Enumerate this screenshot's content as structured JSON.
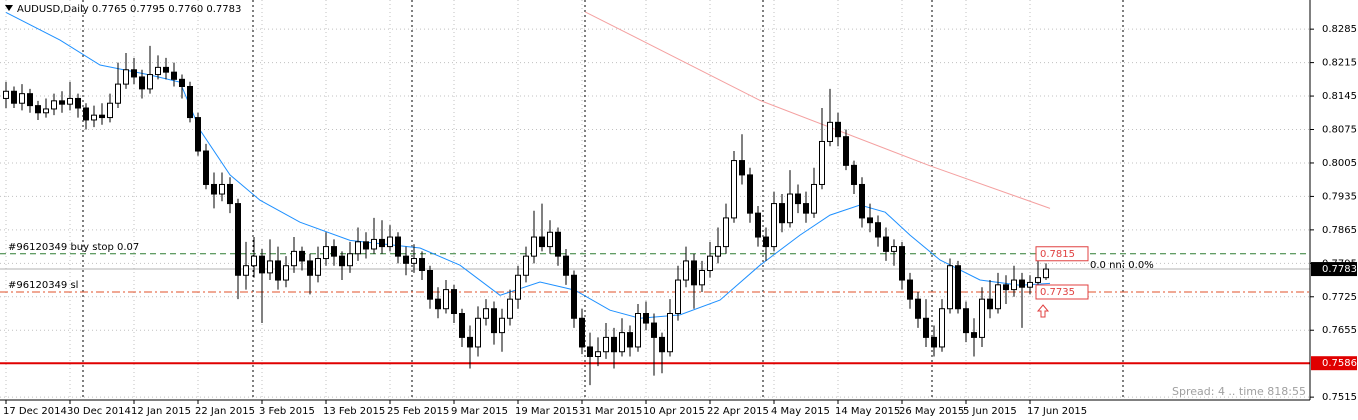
{
  "chart_data": {
    "type": "candlestick",
    "title": "AUDUSD,Daily  0.7765 0.7795 0.7760 0.7783",
    "status": "Spread: 4 .. time 818:55",
    "xlim": [
      -0.75,
      163
    ],
    "ylim": [
      0.7509,
      0.8346
    ],
    "yticks": [
      0.8285,
      0.8215,
      0.8145,
      0.8075,
      0.8005,
      0.7935,
      0.7865,
      0.7795,
      0.7725,
      0.7655,
      0.7515
    ],
    "xticks": [
      {
        "value": 0,
        "label": "17 Dec 2014"
      },
      {
        "value": 8,
        "label": "30 Dec 2014"
      },
      {
        "value": 16,
        "label": "12 Jan 2015"
      },
      {
        "value": 24,
        "label": "22 Jan 2015"
      },
      {
        "value": 32,
        "label": "3 Feb 2015"
      },
      {
        "value": 40,
        "label": "13 Feb 2015"
      },
      {
        "value": 48,
        "label": "25 Feb 2015"
      },
      {
        "value": 56,
        "label": "9 Mar 2015"
      },
      {
        "value": 64,
        "label": "19 Mar 2015"
      },
      {
        "value": 72,
        "label": "31 Mar 2015"
      },
      {
        "value": 80,
        "label": "10 Apr 2015"
      },
      {
        "value": 88,
        "label": "22 Apr 2015"
      },
      {
        "value": 96,
        "label": "4 May 2015"
      },
      {
        "value": 104,
        "label": "14 May 2015"
      },
      {
        "value": 112,
        "label": "26 May 2015"
      },
      {
        "value": 120,
        "label": "5 Jun 2015"
      },
      {
        "value": 128,
        "label": "17 Jun 2015"
      }
    ],
    "grid": true,
    "up_color": "#ffffff",
    "down_color": "#000000",
    "candles": [
      [
        0.814,
        0.8175,
        0.812,
        0.8155
      ],
      [
        0.8155,
        0.8165,
        0.812,
        0.813
      ],
      [
        0.813,
        0.817,
        0.8115,
        0.815
      ],
      [
        0.815,
        0.816,
        0.811,
        0.8125
      ],
      [
        0.8125,
        0.8135,
        0.8095,
        0.811
      ],
      [
        0.811,
        0.814,
        0.81,
        0.8118
      ],
      [
        0.8118,
        0.815,
        0.8105,
        0.8135
      ],
      [
        0.8135,
        0.8155,
        0.811,
        0.8128
      ],
      [
        0.8128,
        0.8175,
        0.8115,
        0.814
      ],
      [
        0.814,
        0.815,
        0.81,
        0.812
      ],
      [
        0.812,
        0.813,
        0.8075,
        0.8095
      ],
      [
        0.8095,
        0.8125,
        0.808,
        0.8105
      ],
      [
        0.8105,
        0.813,
        0.8085,
        0.81
      ],
      [
        0.81,
        0.815,
        0.809,
        0.813
      ],
      [
        0.813,
        0.8215,
        0.812,
        0.817
      ],
      [
        0.817,
        0.8235,
        0.816,
        0.82
      ],
      [
        0.82,
        0.8225,
        0.817,
        0.8185
      ],
      [
        0.8185,
        0.82,
        0.814,
        0.816
      ],
      [
        0.816,
        0.825,
        0.815,
        0.819
      ],
      [
        0.819,
        0.823,
        0.818,
        0.8205
      ],
      [
        0.8205,
        0.8225,
        0.818,
        0.8195
      ],
      [
        0.8195,
        0.8215,
        0.8165,
        0.818
      ],
      [
        0.818,
        0.819,
        0.814,
        0.8165
      ],
      [
        0.8165,
        0.8175,
        0.809,
        0.81
      ],
      [
        0.81,
        0.811,
        0.802,
        0.803
      ],
      [
        0.803,
        0.8045,
        0.795,
        0.796
      ],
      [
        0.796,
        0.7985,
        0.791,
        0.794
      ],
      [
        0.794,
        0.7985,
        0.7925,
        0.796
      ],
      [
        0.796,
        0.7975,
        0.79,
        0.792
      ],
      [
        0.792,
        0.793,
        0.772,
        0.777
      ],
      [
        0.777,
        0.784,
        0.774,
        0.779
      ],
      [
        0.779,
        0.785,
        0.7765,
        0.781
      ],
      [
        0.781,
        0.7825,
        0.767,
        0.7775
      ],
      [
        0.7775,
        0.7845,
        0.776,
        0.78
      ],
      [
        0.78,
        0.783,
        0.774,
        0.776
      ],
      [
        0.776,
        0.781,
        0.7745,
        0.779
      ],
      [
        0.779,
        0.785,
        0.7775,
        0.782
      ],
      [
        0.782,
        0.783,
        0.778,
        0.78
      ],
      [
        0.78,
        0.7815,
        0.773,
        0.777
      ],
      [
        0.777,
        0.783,
        0.7755,
        0.7805
      ],
      [
        0.7805,
        0.786,
        0.779,
        0.783
      ],
      [
        0.783,
        0.7845,
        0.779,
        0.781
      ],
      [
        0.781,
        0.782,
        0.776,
        0.779
      ],
      [
        0.779,
        0.784,
        0.7775,
        0.7815
      ],
      [
        0.7815,
        0.787,
        0.78,
        0.784
      ],
      [
        0.784,
        0.786,
        0.7805,
        0.7825
      ],
      [
        0.7825,
        0.789,
        0.7815,
        0.7845
      ],
      [
        0.7845,
        0.7885,
        0.7815,
        0.783
      ],
      [
        0.783,
        0.7875,
        0.782,
        0.785
      ],
      [
        0.785,
        0.786,
        0.7795,
        0.781
      ],
      [
        0.781,
        0.783,
        0.777,
        0.7795
      ],
      [
        0.7795,
        0.7835,
        0.7775,
        0.7805
      ],
      [
        0.7805,
        0.782,
        0.776,
        0.778
      ],
      [
        0.778,
        0.779,
        0.77,
        0.772
      ],
      [
        0.772,
        0.7745,
        0.768,
        0.77
      ],
      [
        0.77,
        0.776,
        0.769,
        0.774
      ],
      [
        0.774,
        0.775,
        0.767,
        0.769
      ],
      [
        0.769,
        0.77,
        0.762,
        0.764
      ],
      [
        0.764,
        0.7665,
        0.7575,
        0.762
      ],
      [
        0.762,
        0.7705,
        0.76,
        0.768
      ],
      [
        0.768,
        0.772,
        0.7665,
        0.77
      ],
      [
        0.77,
        0.7715,
        0.7625,
        0.765
      ],
      [
        0.765,
        0.77,
        0.761,
        0.768
      ],
      [
        0.768,
        0.774,
        0.7665,
        0.772
      ],
      [
        0.772,
        0.779,
        0.77,
        0.777
      ],
      [
        0.777,
        0.783,
        0.7755,
        0.781
      ],
      [
        0.781,
        0.7905,
        0.7795,
        0.785
      ],
      [
        0.785,
        0.792,
        0.782,
        0.783
      ],
      [
        0.783,
        0.7885,
        0.7815,
        0.786
      ],
      [
        0.786,
        0.787,
        0.779,
        0.781
      ],
      [
        0.781,
        0.7825,
        0.775,
        0.777
      ],
      [
        0.777,
        0.778,
        0.766,
        0.768
      ],
      [
        0.768,
        0.77,
        0.7605,
        0.762
      ],
      [
        0.762,
        0.765,
        0.754,
        0.76
      ],
      [
        0.76,
        0.764,
        0.758,
        0.761
      ],
      [
        0.761,
        0.767,
        0.7595,
        0.764
      ],
      [
        0.764,
        0.766,
        0.7575,
        0.761
      ],
      [
        0.761,
        0.768,
        0.76,
        0.765
      ],
      [
        0.765,
        0.7665,
        0.76,
        0.762
      ],
      [
        0.762,
        0.771,
        0.761,
        0.769
      ],
      [
        0.769,
        0.7715,
        0.7655,
        0.767
      ],
      [
        0.767,
        0.769,
        0.756,
        0.764
      ],
      [
        0.764,
        0.765,
        0.7565,
        0.761
      ],
      [
        0.761,
        0.772,
        0.76,
        0.769
      ],
      [
        0.769,
        0.779,
        0.7675,
        0.776
      ],
      [
        0.776,
        0.783,
        0.7745,
        0.78
      ],
      [
        0.78,
        0.7815,
        0.77,
        0.775
      ],
      [
        0.775,
        0.78,
        0.7735,
        0.778
      ],
      [
        0.778,
        0.784,
        0.7765,
        0.781
      ],
      [
        0.781,
        0.787,
        0.7795,
        0.783
      ],
      [
        0.783,
        0.792,
        0.7815,
        0.789
      ],
      [
        0.789,
        0.803,
        0.788,
        0.801
      ],
      [
        0.801,
        0.8065,
        0.796,
        0.798
      ],
      [
        0.798,
        0.7995,
        0.788,
        0.79
      ],
      [
        0.79,
        0.7915,
        0.783,
        0.785
      ],
      [
        0.785,
        0.787,
        0.78,
        0.783
      ],
      [
        0.783,
        0.7945,
        0.782,
        0.792
      ],
      [
        0.792,
        0.794,
        0.786,
        0.788
      ],
      [
        0.788,
        0.799,
        0.787,
        0.794
      ],
      [
        0.794,
        0.796,
        0.79,
        0.792
      ],
      [
        0.792,
        0.7945,
        0.788,
        0.79
      ],
      [
        0.79,
        0.7995,
        0.789,
        0.796
      ],
      [
        0.796,
        0.812,
        0.795,
        0.805
      ],
      [
        0.805,
        0.816,
        0.804,
        0.809
      ],
      [
        0.809,
        0.811,
        0.804,
        0.806
      ],
      [
        0.806,
        0.8075,
        0.799,
        0.8
      ],
      [
        0.8,
        0.801,
        0.794,
        0.796
      ],
      [
        0.796,
        0.7975,
        0.787,
        0.789
      ],
      [
        0.789,
        0.792,
        0.786,
        0.788
      ],
      [
        0.788,
        0.7895,
        0.783,
        0.785
      ],
      [
        0.785,
        0.787,
        0.78,
        0.782
      ],
      [
        0.782,
        0.7845,
        0.779,
        0.783
      ],
      [
        0.783,
        0.784,
        0.774,
        0.776
      ],
      [
        0.776,
        0.7775,
        0.77,
        0.772
      ],
      [
        0.772,
        0.7735,
        0.766,
        0.768
      ],
      [
        0.768,
        0.772,
        0.762,
        0.764
      ],
      [
        0.764,
        0.7665,
        0.76,
        0.762
      ],
      [
        0.762,
        0.772,
        0.761,
        0.77
      ],
      [
        0.77,
        0.7805,
        0.769,
        0.779
      ],
      [
        0.779,
        0.78,
        0.769,
        0.77
      ],
      [
        0.77,
        0.7715,
        0.763,
        0.765
      ],
      [
        0.765,
        0.768,
        0.76,
        0.764
      ],
      [
        0.764,
        0.7745,
        0.762,
        0.772
      ],
      [
        0.772,
        0.776,
        0.768,
        0.77
      ],
      [
        0.77,
        0.7775,
        0.769,
        0.775
      ],
      [
        0.775,
        0.777,
        0.771,
        0.774
      ],
      [
        0.774,
        0.779,
        0.7725,
        0.776
      ],
      [
        0.776,
        0.7775,
        0.766,
        0.7745
      ],
      [
        0.7745,
        0.777,
        0.773,
        0.7755
      ],
      [
        0.7755,
        0.783,
        0.7745,
        0.7765
      ],
      [
        0.7765,
        0.7795,
        0.776,
        0.7783
      ]
    ],
    "lines": [
      {
        "color": "#1e90ff",
        "x": [
          0,
          6.75,
          11.75,
          18,
          21.75,
          24.25,
          28,
          31.75,
          36.75,
          43,
          51.75,
          56.75,
          61.75,
          66.75,
          71.1,
          75.5,
          79.25,
          84.25,
          89.25,
          94.25,
          99.25,
          103,
          106.75,
          109.9,
          113,
          116.75,
          121.75,
          126.75,
          130.5
        ],
        "values": [
          0.832,
          0.8262,
          0.821,
          0.8189,
          0.8174,
          0.8074,
          0.798,
          0.7927,
          0.7881,
          0.7843,
          0.7827,
          0.7791,
          0.7728,
          0.7756,
          0.7739,
          0.7697,
          0.768,
          0.7687,
          0.7718,
          0.7791,
          0.7854,
          0.7896,
          0.7917,
          0.7902,
          0.7854,
          0.7802,
          0.776,
          0.7749,
          0.7753
        ]
      },
      {
        "color": "#f4a0a0",
        "x": [
          72.4,
          94.25,
          115.5,
          130.5
        ],
        "values": [
          0.8321,
          0.8136,
          0.7999,
          0.791
        ]
      }
    ],
    "levels": [
      {
        "value": 0.7815,
        "label": "#96120349 buy stop 0.07",
        "color": "#2e7d32",
        "style": "dashed"
      },
      {
        "value": 0.7735,
        "label": "#96120349 sl",
        "color": "#e0502a",
        "style": "dashdot"
      },
      {
        "value": 0.7586,
        "color": "#e00000",
        "style": "solid"
      }
    ],
    "current_price": 0.7783,
    "order_info": "0.0 nn: 0.0%"
  }
}
